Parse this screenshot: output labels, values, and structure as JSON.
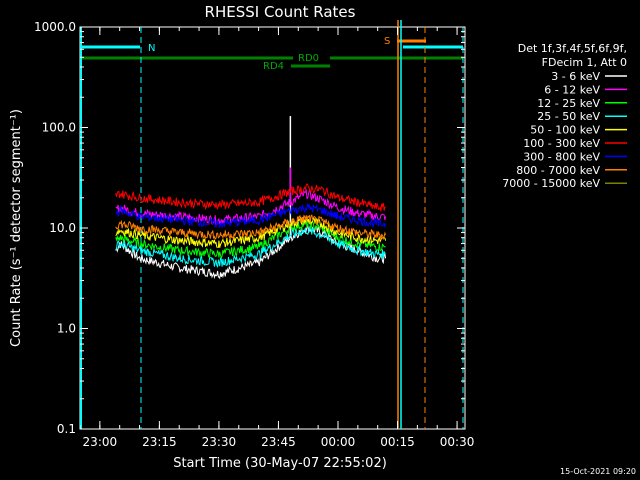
{
  "chart_data": {
    "type": "line",
    "title": "RHESSI Count Rates",
    "xlabel": "Start Time (30-May-07 22:55:02)",
    "ylabel": "Count Rate (s⁻¹ detector segment⁻¹)",
    "yscale": "log",
    "ylim": [
      0.1,
      1000
    ],
    "xlim": [
      "22:55",
      "00:32"
    ],
    "y_ticks": [
      {
        "v": 1000,
        "label": "1000.0"
      },
      {
        "v": 100,
        "label": "100.0"
      },
      {
        "v": 10,
        "label": "10.0"
      },
      {
        "v": 1,
        "label": "1.0"
      },
      {
        "v": 0.1,
        "label": "0.1"
      }
    ],
    "x_ticks": [
      {
        "t": "23:00",
        "label": "23:00"
      },
      {
        "t": "23:15",
        "label": "23:15"
      },
      {
        "t": "23:30",
        "label": "23:30"
      },
      {
        "t": "23:45",
        "label": "23:45"
      },
      {
        "t": "00:00",
        "label": "00:00"
      },
      {
        "t": "00:15",
        "label": "00:15"
      },
      {
        "t": "00:30",
        "label": "00:30"
      }
    ],
    "legend_header": [
      "Det 1f,3f,4f,5f,6f,9f,",
      "FDecim 1, Att 0"
    ],
    "legend_position": "right",
    "series": [
      {
        "name": "3 - 6 keV",
        "color": "#ffffff",
        "t": [
          "23:04",
          "23:05",
          "23:10",
          "23:20",
          "23:30",
          "23:40",
          "23:48",
          "23:52",
          "23:56",
          "00:00",
          "00:05",
          "00:10",
          "00:12"
        ],
        "values": [
          6,
          7,
          5,
          4,
          3.5,
          4.5,
          8,
          10,
          9,
          7,
          6,
          5,
          5
        ],
        "spike": {
          "t": "23:48",
          "value": 130
        }
      },
      {
        "name": "6 - 12 keV",
        "color": "#ff00ff",
        "t": [
          "23:04",
          "23:05",
          "23:10",
          "23:20",
          "23:30",
          "23:40",
          "23:48",
          "23:52",
          "23:56",
          "00:00",
          "00:05",
          "00:10",
          "00:12"
        ],
        "values": [
          15,
          16,
          14,
          13,
          12,
          13,
          18,
          22,
          19,
          16,
          14,
          13,
          13
        ],
        "spike": {
          "t": "23:48",
          "value": 40
        }
      },
      {
        "name": "12 - 25 keV",
        "color": "#00ff00",
        "t": [
          "23:04",
          "23:05",
          "23:10",
          "23:20",
          "23:30",
          "23:40",
          "23:48",
          "23:52",
          "23:56",
          "00:00",
          "00:05",
          "00:10",
          "00:12"
        ],
        "values": [
          7.5,
          8,
          7,
          6,
          5.5,
          6.5,
          10,
          11,
          10,
          8,
          7,
          6.5,
          6.5
        ]
      },
      {
        "name": "25 - 50 keV",
        "color": "#00ffff",
        "t": [
          "23:04",
          "23:05",
          "23:10",
          "23:20",
          "23:30",
          "23:40",
          "23:48",
          "23:52",
          "23:56",
          "00:00",
          "00:05",
          "00:10",
          "00:12"
        ],
        "values": [
          6.5,
          7,
          6,
          5,
          4.5,
          5.5,
          8.5,
          9.5,
          8.5,
          7,
          6,
          5.5,
          5.5
        ]
      },
      {
        "name": "50 - 100 keV",
        "color": "#ffff00",
        "t": [
          "23:04",
          "23:05",
          "23:10",
          "23:20",
          "23:30",
          "23:40",
          "23:48",
          "23:52",
          "23:56",
          "00:00",
          "00:05",
          "00:10",
          "00:12"
        ],
        "values": [
          9,
          9.5,
          8.5,
          7.5,
          7,
          8,
          11,
          12,
          11,
          9,
          8,
          7.5,
          7.5
        ]
      },
      {
        "name": "100 - 300 keV",
        "color": "#ff0000",
        "t": [
          "23:04",
          "23:05",
          "23:10",
          "23:20",
          "23:30",
          "23:40",
          "23:48",
          "23:52",
          "23:56",
          "00:00",
          "00:05",
          "00:10",
          "00:12"
        ],
        "values": [
          21,
          22,
          20,
          18,
          17,
          18,
          23,
          25,
          24,
          20,
          18,
          16,
          16
        ]
      },
      {
        "name": "300 - 800 keV",
        "color": "#0000ff",
        "t": [
          "23:04",
          "23:05",
          "23:10",
          "23:20",
          "23:30",
          "23:40",
          "23:48",
          "23:52",
          "23:56",
          "00:00",
          "00:05",
          "00:10",
          "00:12"
        ],
        "values": [
          14,
          15,
          13,
          12,
          11,
          12,
          15,
          16,
          15,
          13,
          12,
          11,
          11
        ]
      },
      {
        "name": "800 - 7000 keV",
        "color": "#ff8000",
        "t": [
          "23:04",
          "23:05",
          "23:10",
          "23:20",
          "23:30",
          "23:40",
          "23:48",
          "23:52",
          "23:56",
          "00:00",
          "00:05",
          "00:10",
          "00:12"
        ],
        "values": [
          10.5,
          11,
          10,
          9,
          8.5,
          9,
          11.5,
          12.5,
          11.5,
          10,
          9,
          8.5,
          8.5
        ]
      },
      {
        "name": "7000 - 15000 keV",
        "color": "#808000",
        "t": [],
        "values": []
      }
    ],
    "annotations": {
      "rd0_label": "RD0",
      "rd4_label": "RD4",
      "n_label": "N",
      "s_label": "S"
    }
  },
  "footer_date": "15-Oct-2021 09:20"
}
